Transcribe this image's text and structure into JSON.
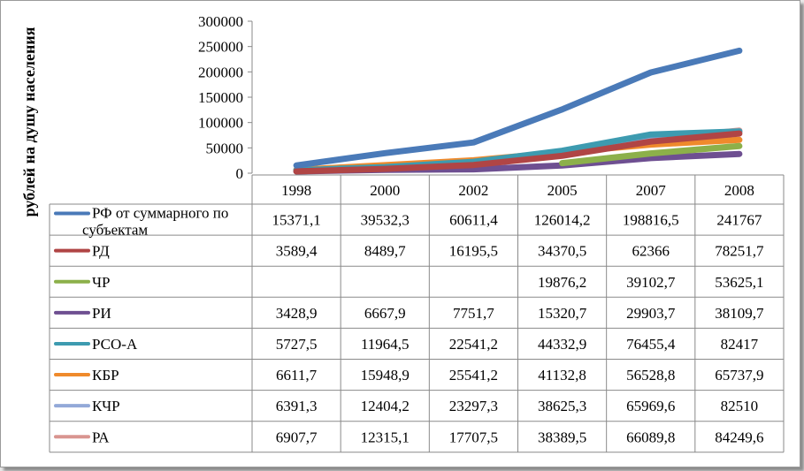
{
  "chart_data": {
    "type": "line",
    "ylabel": "рублей на душу населения",
    "ylim": [
      0,
      300000
    ],
    "yticks": [
      "300000",
      "250000",
      "200000",
      "150000",
      "100000",
      "50000",
      "0"
    ],
    "categories": [
      "1998",
      "2000",
      "2002",
      "2005",
      "2007",
      "2008"
    ],
    "grid": false,
    "legend": "data-table",
    "series": [
      {
        "name": "РФ от суммарного по субъектам",
        "color": "#4a7ab8",
        "display": [
          "15371,1",
          "39532,3",
          "60611,4",
          "126014,2",
          "198816,5",
          "241767"
        ],
        "values": [
          15371.1,
          39532.3,
          60611.4,
          126014.2,
          198816.5,
          241767
        ]
      },
      {
        "name": "РД",
        "color": "#b04545",
        "display": [
          "3589,4",
          "8489,7",
          "16195,5",
          "34370,5",
          "62366",
          "78251,7"
        ],
        "values": [
          3589.4,
          8489.7,
          16195.5,
          34370.5,
          62366,
          78251.7
        ]
      },
      {
        "name": "ЧР",
        "color": "#8cb04a",
        "display": [
          "",
          "",
          "",
          "19876,2",
          "39102,7",
          "53625,1"
        ],
        "values": [
          null,
          null,
          null,
          19876.2,
          39102.7,
          53625.1
        ]
      },
      {
        "name": "РИ",
        "color": "#6e4f91",
        "display": [
          "3428,9",
          "6667,9",
          "7751,7",
          "15320,7",
          "29903,7",
          "38109,7"
        ],
        "values": [
          3428.9,
          6667.9,
          7751.7,
          15320.7,
          29903.7,
          38109.7
        ]
      },
      {
        "name": "РСО-А",
        "color": "#3d9bb0",
        "display": [
          "5727,5",
          "11964,5",
          "22541,2",
          "44332,9",
          "76455,4",
          "82417"
        ],
        "values": [
          5727.5,
          11964.5,
          22541.2,
          44332.9,
          76455.4,
          82417
        ]
      },
      {
        "name": "КБР",
        "color": "#ef8a2c",
        "display": [
          "6611,7",
          "15948,9",
          "25541,2",
          "41132,8",
          "56528,8",
          "65737,9"
        ],
        "values": [
          6611.7,
          15948.9,
          25541.2,
          41132.8,
          56528.8,
          65737.9
        ]
      },
      {
        "name": "КЧР",
        "color": "#93a9d8",
        "display": [
          "6391,3",
          "12404,2",
          "23297,3",
          "38625,3",
          "65969,6",
          "82510"
        ],
        "values": [
          6391.3,
          12404.2,
          23297.3,
          38625.3,
          65969.6,
          82510
        ]
      },
      {
        "name": "РА",
        "color": "#d99590",
        "display": [
          "6907,7",
          "12315,1",
          "17707,5",
          "38389,5",
          "66089,8",
          "84249,6"
        ],
        "values": [
          6907.7,
          12315.1,
          17707.5,
          38389.5,
          66089.8,
          84249.6
        ]
      }
    ]
  }
}
